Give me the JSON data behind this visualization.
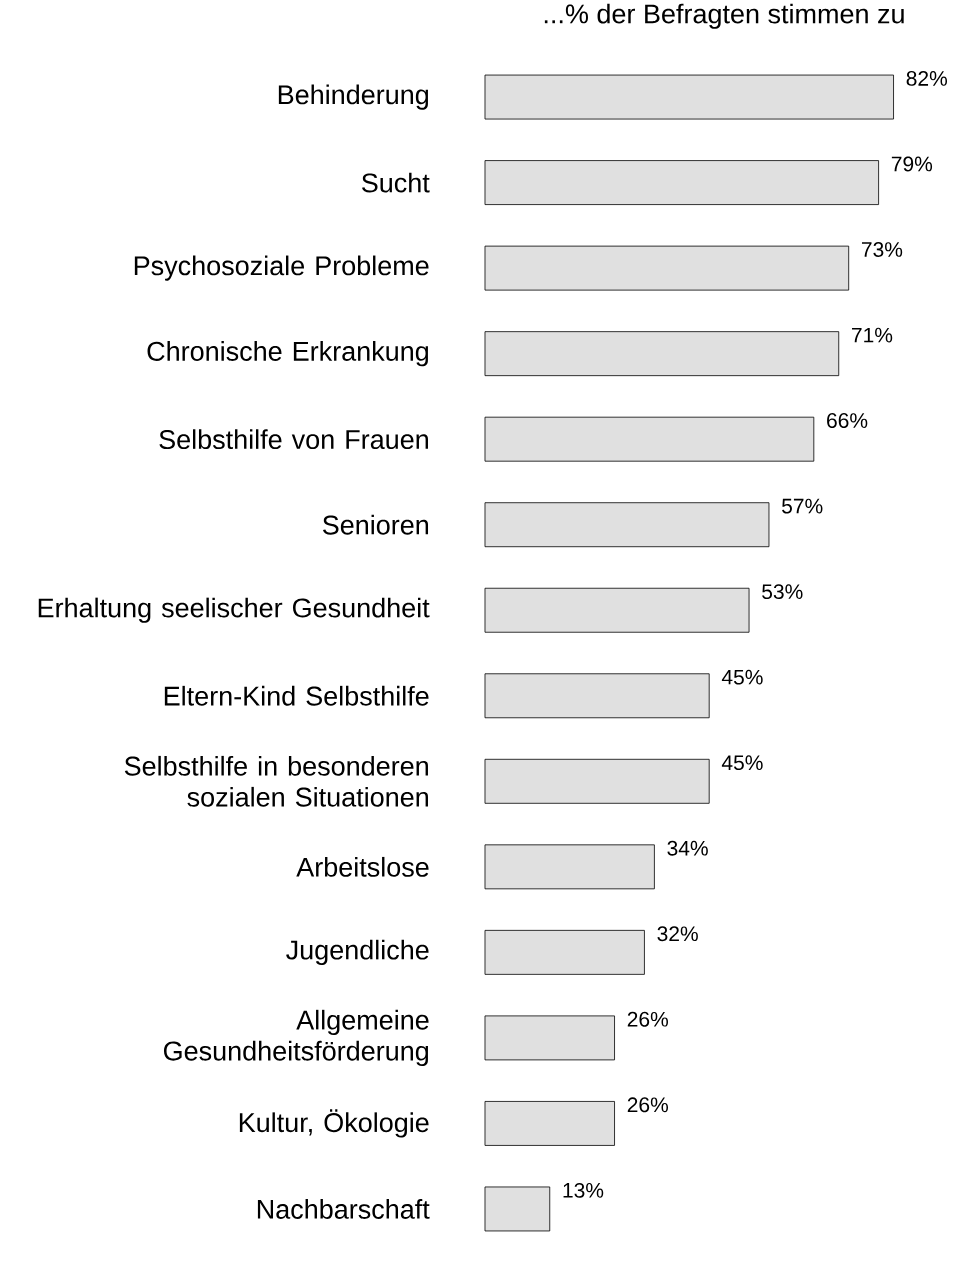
{
  "chart_data": {
    "type": "bar",
    "orientation": "horizontal",
    "title": "...% der Befragten stimmen zu",
    "categories": [
      "Behinderung",
      "Sucht",
      "Psychosoziale Probleme",
      "Chronische Erkrankung",
      "Selbsthilfe von Frauen",
      "Senioren",
      "Erhaltung seelischer Gesundheit",
      "Eltern-Kind Selbsthilfe",
      "Selbsthilfe in besonderen sozialen Situationen",
      "Arbeitslose",
      "Jugendliche",
      "Allgemeine Gesundheitsförderung",
      "Kultur, Ökologie",
      "Nachbarschaft"
    ],
    "values": [
      82,
      79,
      73,
      71,
      66,
      57,
      53,
      45,
      45,
      34,
      32,
      26,
      26,
      13
    ],
    "value_labels": [
      "82%",
      "79%",
      "73%",
      "71%",
      "66%",
      "57%",
      "53%",
      "45%",
      "45%",
      "34%",
      "32%",
      "26%",
      "26%",
      "13%"
    ],
    "color": "#e0e0e0"
  }
}
